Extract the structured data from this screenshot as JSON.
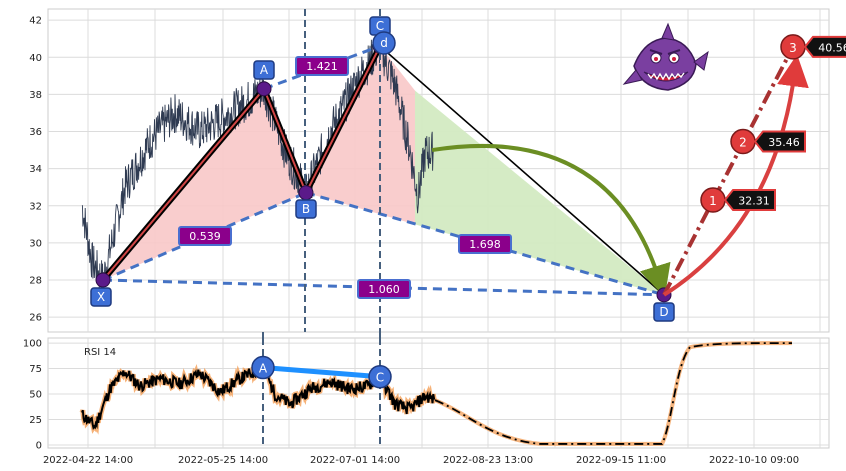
{
  "chart_data": [
    {
      "type": "line",
      "panel": "price",
      "ylim": [
        25.2,
        42.6
      ],
      "yticks": [
        26,
        28,
        30,
        32,
        34,
        36,
        38,
        40,
        42
      ],
      "x_ticks": [
        "2022-04-22 14:00",
        "2022-05-25 14:00",
        "2022-07-01 14:00",
        "2022-08-23 13:00",
        "2022-09-15 11:00",
        "2022-10-10 09:00"
      ],
      "grid": true,
      "pattern_points": [
        {
          "label": "X",
          "y": 28.0
        },
        {
          "label": "A",
          "y": 38.3
        },
        {
          "label": "B",
          "y": 32.7
        },
        {
          "label": "C",
          "y": 40.6
        },
        {
          "label": "d",
          "y": 40.6
        },
        {
          "label": "D",
          "y": 27.2
        }
      ],
      "ratios": [
        "0.539",
        "1.421",
        "1.698",
        "1.060"
      ],
      "targets": [
        {
          "label": "1",
          "value": "32.31"
        },
        {
          "label": "2",
          "value": "35.46"
        },
        {
          "label": "3",
          "value": "40.56"
        }
      ]
    },
    {
      "type": "line",
      "panel": "rsi",
      "title": "RSI 14",
      "ylim": [
        -3,
        105
      ],
      "yticks": [
        0,
        25,
        50,
        75,
        100
      ],
      "grid": true,
      "divergence_points": [
        {
          "label": "A",
          "y": 76
        },
        {
          "label": "C",
          "y": 67
        }
      ]
    }
  ],
  "colors": {
    "price_line": "#2f3b52",
    "pattern_fill": "#f8c8c8",
    "projection_fill": "#d3eac2",
    "dashed": "#4472c4",
    "label_box": "#3d6fd6",
    "ratio_box": "#8b008b",
    "target": "#e03b3b",
    "arrow_green": "#6b8e23",
    "rsi_line": "#000000",
    "rsi_glow": "#f4a460",
    "rsi_divergence": "#1e90ff"
  },
  "icons": {
    "mascot": "shark-mascot-icon"
  }
}
